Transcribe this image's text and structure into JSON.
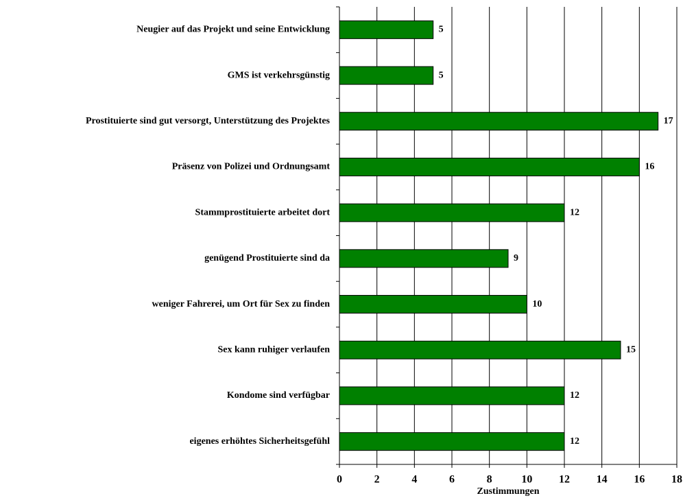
{
  "chart_data": {
    "type": "bar",
    "orientation": "horizontal",
    "x_label": "Zustimmungen",
    "categories": [
      "Neugier auf das Projekt und seine Entwicklung",
      "GMS ist verkehrsgünstig",
      "Prostituierte sind gut versorgt, Unterstützung des Projektes",
      "Präsenz von Polizei und Ordnungsamt",
      "Stammprostituierte arbeitet dort",
      "genügend Prostituierte sind da",
      "weniger Fahrerei, um Ort für Sex zu finden",
      "Sex kann ruhiger verlaufen",
      "Kondome sind verfügbar",
      "eigenes erhöhtes Sicherheitsgefühl"
    ],
    "values": [
      5,
      5,
      17,
      16,
      12,
      9,
      10,
      15,
      12,
      12
    ],
    "color": "#008000",
    "xlim": [
      0,
      18
    ],
    "xticks": [
      0,
      2,
      4,
      6,
      8,
      10,
      12,
      14,
      16,
      18
    ],
    "grid": true
  }
}
